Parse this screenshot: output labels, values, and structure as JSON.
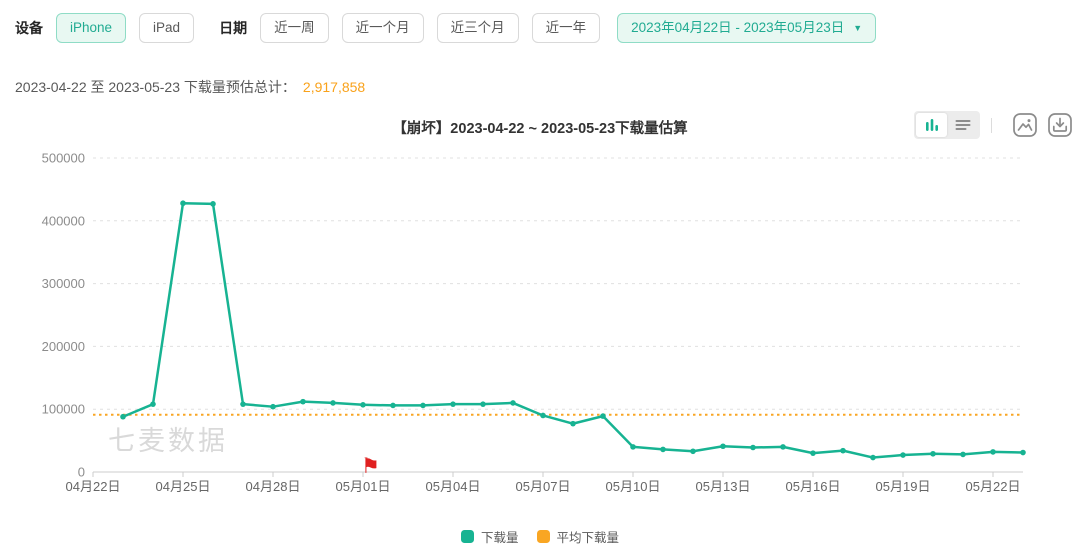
{
  "colors": {
    "green": "#17b392",
    "green_light_bg": "#e8f8f2",
    "green_border": "#8fdcc6",
    "orange": "#f9a623",
    "red_flag": "#e02020"
  },
  "toolbar": {
    "device_label": "设备",
    "device_options": [
      {
        "label": "iPhone",
        "selected": true
      },
      {
        "label": "iPad",
        "selected": false
      }
    ],
    "date_label": "日期",
    "range_options": [
      "近一周",
      "近一个月",
      "近三个月",
      "近一年"
    ],
    "date_range_value": "2023年04月22日 - 2023年05月23日",
    "caret_icon": "▼"
  },
  "summary": {
    "label": "2023-04-22 至 2023-05-23 下载量预估总计：",
    "total": "2,917,858"
  },
  "chart_data": {
    "type": "line",
    "title": "【崩坏】2023-04-22 ~ 2023-05-23下载量估算",
    "watermark": "七麦数据",
    "ylim": [
      0,
      500000
    ],
    "y_ticks": [
      0,
      100000,
      200000,
      300000,
      400000,
      500000
    ],
    "axis_start_date": "2023-04-22",
    "total_days": 32,
    "x_tick_labels": [
      "04月22日",
      "04月25日",
      "04月28日",
      "05月01日",
      "05月04日",
      "05月07日",
      "05月10日",
      "05月13日",
      "05月16日",
      "05月19日",
      "05月22日"
    ],
    "x_tick_day_offsets": [
      0,
      3,
      6,
      9,
      12,
      15,
      18,
      21,
      24,
      27,
      30
    ],
    "grid": "dashed-horizontal",
    "legend_position": "bottom",
    "series": [
      {
        "name": "下载量",
        "color": "#17b392",
        "start_day_offset": 1,
        "dates": [
          "04-23",
          "04-24",
          "04-25",
          "04-26",
          "04-27",
          "04-28",
          "04-29",
          "04-30",
          "05-01",
          "05-02",
          "05-03",
          "05-04",
          "05-05",
          "05-06",
          "05-07",
          "05-08",
          "05-09",
          "05-10",
          "05-11",
          "05-12",
          "05-13",
          "05-14",
          "05-15",
          "05-16",
          "05-17",
          "05-18",
          "05-19",
          "05-20",
          "05-21",
          "05-22",
          "05-23"
        ],
        "values": [
          88000,
          108000,
          428000,
          427000,
          108000,
          104000,
          112000,
          110000,
          107000,
          106000,
          106000,
          108000,
          108000,
          110000,
          90000,
          77000,
          89000,
          40000,
          36000,
          33000,
          41000,
          39000,
          40000,
          30000,
          34000,
          23000,
          27000,
          29000,
          28000,
          32000,
          31000
        ]
      },
      {
        "name": "平均下载量",
        "color": "#f9a623",
        "style": "dotted-horizontal",
        "value": 91183
      }
    ],
    "marker": {
      "type": "flag",
      "glyph": "⚑",
      "x_label": "05月01日",
      "x_day_offset": 9,
      "color": "#e02020"
    }
  },
  "legend": {
    "items": [
      {
        "label": "下载量",
        "color": "#17b392"
      },
      {
        "label": "平均下载量",
        "color": "#f9a623"
      }
    ]
  }
}
